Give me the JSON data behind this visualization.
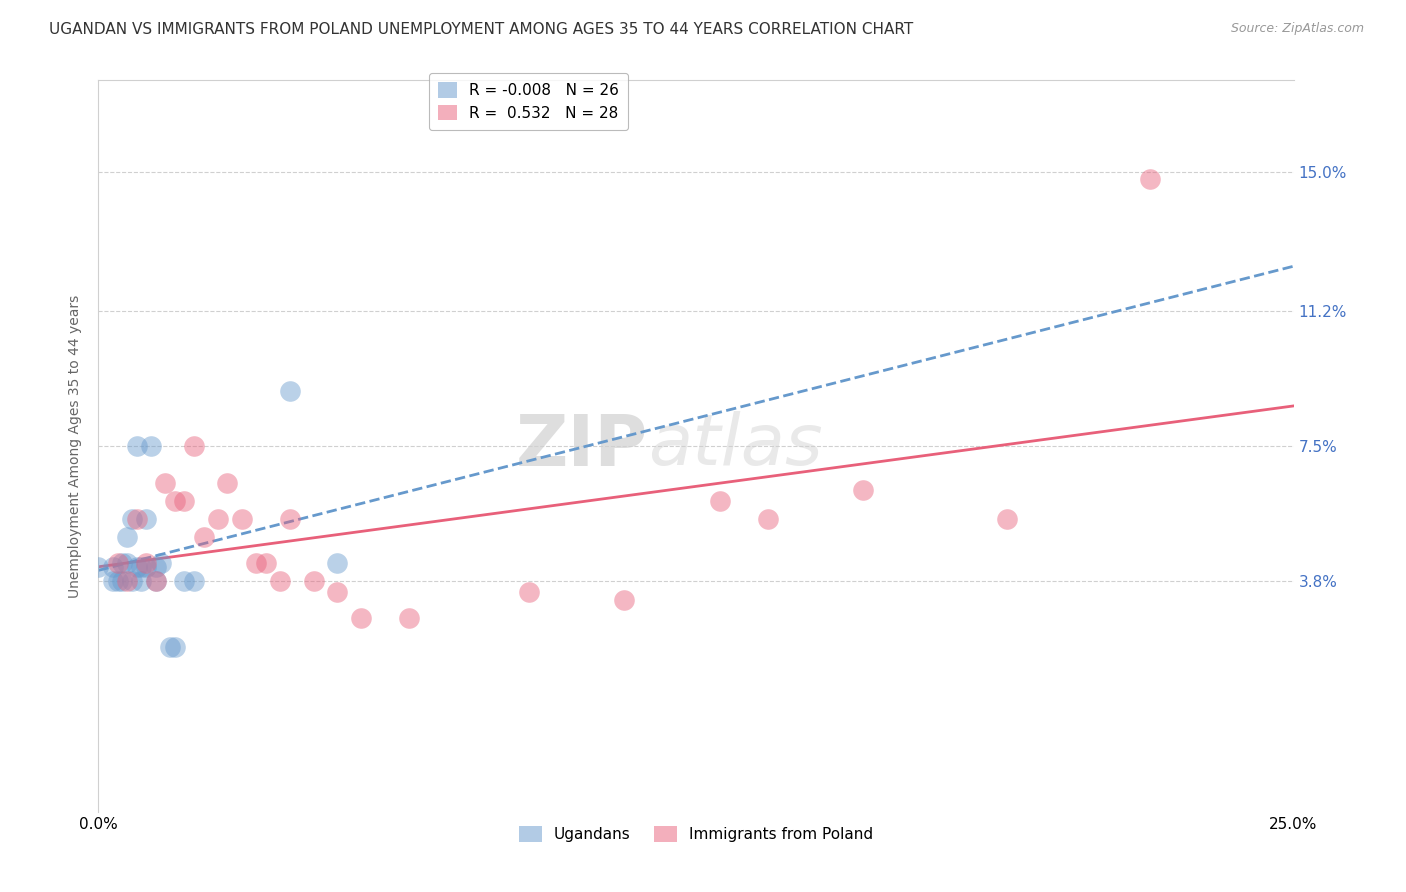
{
  "title": "UGANDAN VS IMMIGRANTS FROM POLAND UNEMPLOYMENT AMONG AGES 35 TO 44 YEARS CORRELATION CHART",
  "source": "Source: ZipAtlas.com",
  "ylabel": "Unemployment Among Ages 35 to 44 years",
  "ytick_labels": [
    "3.8%",
    "7.5%",
    "11.2%",
    "15.0%"
  ],
  "ytick_values": [
    0.038,
    0.075,
    0.112,
    0.15
  ],
  "xlim": [
    0.0,
    0.25
  ],
  "ylim": [
    -0.025,
    0.175
  ],
  "legend_entry1": {
    "label": "Ugandans",
    "R": "-0.008",
    "N": "26",
    "color": "#7bafd4"
  },
  "legend_entry2": {
    "label": "Immigrants from Poland",
    "R": "0.532",
    "N": "28",
    "color": "#f08080"
  },
  "ugandan_x": [
    0.0,
    0.003,
    0.003,
    0.004,
    0.005,
    0.005,
    0.006,
    0.006,
    0.007,
    0.007,
    0.008,
    0.008,
    0.009,
    0.009,
    0.01,
    0.01,
    0.011,
    0.012,
    0.012,
    0.013,
    0.015,
    0.016,
    0.018,
    0.02,
    0.04,
    0.05
  ],
  "ugandan_y": [
    0.042,
    0.038,
    0.042,
    0.038,
    0.038,
    0.043,
    0.043,
    0.05,
    0.038,
    0.055,
    0.042,
    0.075,
    0.038,
    0.042,
    0.042,
    0.055,
    0.075,
    0.038,
    0.042,
    0.043,
    0.02,
    0.02,
    0.038,
    0.038,
    0.09,
    0.043
  ],
  "poland_x": [
    0.004,
    0.006,
    0.008,
    0.01,
    0.012,
    0.014,
    0.016,
    0.018,
    0.02,
    0.022,
    0.025,
    0.027,
    0.03,
    0.033,
    0.035,
    0.038,
    0.04,
    0.045,
    0.05,
    0.055,
    0.065,
    0.09,
    0.11,
    0.13,
    0.14,
    0.16,
    0.19,
    0.22
  ],
  "poland_y": [
    0.043,
    0.038,
    0.055,
    0.043,
    0.038,
    0.065,
    0.06,
    0.06,
    0.075,
    0.05,
    0.055,
    0.065,
    0.055,
    0.043,
    0.043,
    0.038,
    0.055,
    0.038,
    0.035,
    0.028,
    0.028,
    0.035,
    0.033,
    0.06,
    0.055,
    0.063,
    0.055,
    0.148
  ],
  "ugandan_line_color": "#6699cc",
  "poland_line_color": "#e8607a",
  "background_color": "#ffffff",
  "grid_color": "#d0d0d0",
  "title_fontsize": 11,
  "source_fontsize": 9,
  "axis_label_fontsize": 10,
  "tick_fontsize": 11,
  "legend_fontsize": 11,
  "watermark": "ZIPatlas",
  "watermark_zip": "ZIP",
  "watermark_atlas": "atlas"
}
